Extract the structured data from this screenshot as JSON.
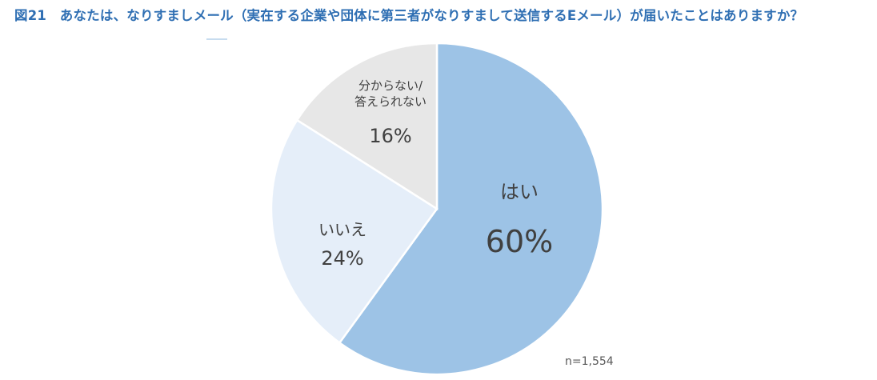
{
  "title": "図21　あなたは、なりすましメール（実在する企業や団体に第三者がなりすまして送信するEメール）が届いたことはありますか？",
  "sample_note": "n=1,554",
  "chart_data": {
    "type": "pie",
    "categories": [
      "はい",
      "いいえ",
      "分からない/答えられない"
    ],
    "values": [
      60,
      24,
      16
    ],
    "value_labels": [
      "60%",
      "24%",
      "16%"
    ],
    "label_lines": [
      [
        "はい"
      ],
      [
        "いいえ"
      ],
      [
        "分からない/",
        "答えられない"
      ]
    ],
    "colors": [
      "#9dc3e6",
      "#e5eef9",
      "#e7e7e7"
    ],
    "title": "図21　あなたは、なりすましメール（実在する企業や団体に第三者がなりすまして送信するEメール）が届いたことはありますか？"
  }
}
